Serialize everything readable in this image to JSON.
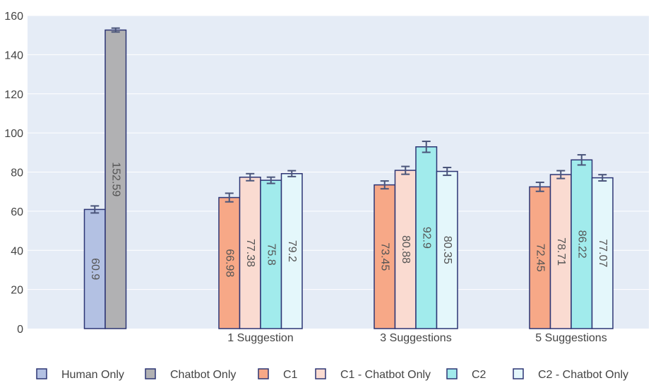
{
  "chart_data": {
    "type": "bar",
    "ylim": [
      0,
      160
    ],
    "y_ticks": [
      "0",
      "20",
      "40",
      "60",
      "80",
      "100",
      "120",
      "140",
      "160"
    ],
    "grid": true,
    "legend_position": "bottom",
    "categories": [
      "",
      "1 Suggestion",
      "3 Suggestions",
      "5 Suggestions"
    ],
    "series": [
      {
        "name": "Human Only",
        "color": "#b3c1e3",
        "values": [
          60.9,
          null,
          null,
          null
        ],
        "labels": [
          "60.9",
          "",
          "",
          ""
        ],
        "errors": [
          1.8,
          null,
          null,
          null
        ]
      },
      {
        "name": "Chatbot Only",
        "color": "#b1b1b3",
        "values": [
          152.59,
          null,
          null,
          null
        ],
        "labels": [
          "152.59",
          "",
          "",
          ""
        ],
        "errors": [
          1.0,
          null,
          null,
          null
        ]
      },
      {
        "name": "C1",
        "color": "#f7a887",
        "values": [
          null,
          66.98,
          73.45,
          72.45
        ],
        "labels": [
          "",
          "66.98",
          "73.45",
          "72.45"
        ],
        "errors": [
          null,
          2.2,
          2.0,
          2.3
        ]
      },
      {
        "name": "C1 - Chatbot Only",
        "color": "#fadbd1",
        "values": [
          null,
          77.38,
          80.88,
          78.71
        ],
        "labels": [
          "",
          "77.38",
          "80.88",
          "78.71"
        ],
        "errors": [
          null,
          1.8,
          2.0,
          2.0
        ]
      },
      {
        "name": "C2",
        "color": "#a1ebec",
        "values": [
          null,
          75.8,
          92.9,
          86.22
        ],
        "labels": [
          "",
          "75.8",
          "92.9",
          "86.22"
        ],
        "errors": [
          null,
          1.6,
          2.8,
          2.6
        ]
      },
      {
        "name": "C2 - Chatbot Only",
        "color": "#e4f7fb",
        "values": [
          null,
          79.2,
          80.35,
          77.07
        ],
        "labels": [
          "",
          "79.2",
          "80.35",
          "77.07"
        ],
        "errors": [
          null,
          1.5,
          2.0,
          1.6
        ]
      }
    ],
    "colors": {
      "plot_bg": "#e5ecf6",
      "bar_outline": "#2c3574",
      "error_bar": "#4a557a",
      "grid": "#ffffff"
    }
  }
}
